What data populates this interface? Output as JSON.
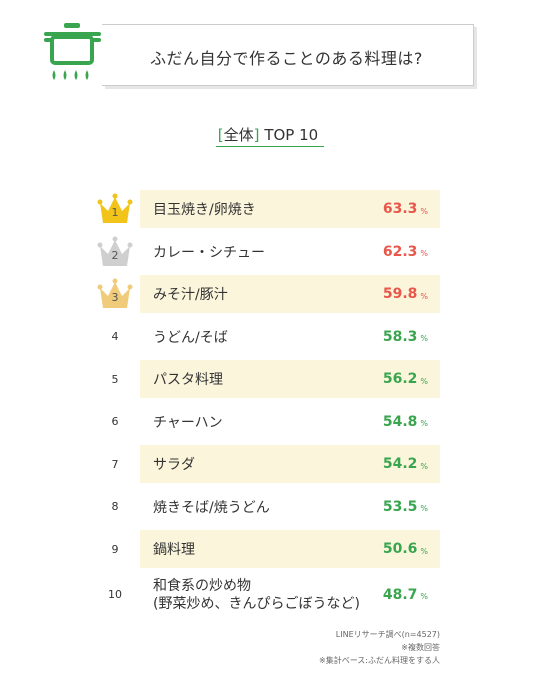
{
  "header": {
    "question": "ふだん自分で作ることのある料理は?",
    "icon": "cooking-pot-icon",
    "accent_color": "#3aa54f"
  },
  "subtitle": {
    "bracket_open": "[",
    "segment": "全体",
    "bracket_close": "]",
    "label": "TOP 10"
  },
  "chart_data": {
    "type": "table",
    "title": "ふだん自分で作ることのある料理は?",
    "subtitle": "[全体] TOP 10",
    "unit": "%",
    "highlight_color": "#fbf5dc",
    "rows": [
      {
        "rank": "1",
        "label": "目玉焼き/卵焼き",
        "value": 63.3,
        "display": "63.3",
        "color": "#e8574a",
        "crown": "gold"
      },
      {
        "rank": "2",
        "label": "カレー・シチュー",
        "value": 62.3,
        "display": "62.3",
        "color": "#e8574a",
        "crown": "silver"
      },
      {
        "rank": "3",
        "label": "みそ汁/豚汁",
        "value": 59.8,
        "display": "59.8",
        "color": "#e8574a",
        "crown": "bronze"
      },
      {
        "rank": "4",
        "label": "うどん/そば",
        "value": 58.3,
        "display": "58.3",
        "color": "#3aa54f"
      },
      {
        "rank": "5",
        "label": "パスタ料理",
        "value": 56.2,
        "display": "56.2",
        "color": "#3aa54f"
      },
      {
        "rank": "6",
        "label": "チャーハン",
        "value": 54.8,
        "display": "54.8",
        "color": "#3aa54f"
      },
      {
        "rank": "7",
        "label": "サラダ",
        "value": 54.2,
        "display": "54.2",
        "color": "#3aa54f"
      },
      {
        "rank": "8",
        "label": "焼きそば/焼うどん",
        "value": 53.5,
        "display": "53.5",
        "color": "#3aa54f"
      },
      {
        "rank": "9",
        "label": "鍋料理",
        "value": 50.6,
        "display": "50.6",
        "color": "#3aa54f"
      },
      {
        "rank": "10",
        "label": "和食系の炒め物",
        "sublabel": "(野菜炒め、きんぴらごぼうなど)",
        "value": 48.7,
        "display": "48.7",
        "color": "#3aa54f"
      }
    ]
  },
  "notes": [
    "LINEリサーチ調べ(n=4527)",
    "※複数回答",
    "※集計ベース:ふだん料理をする人"
  ]
}
